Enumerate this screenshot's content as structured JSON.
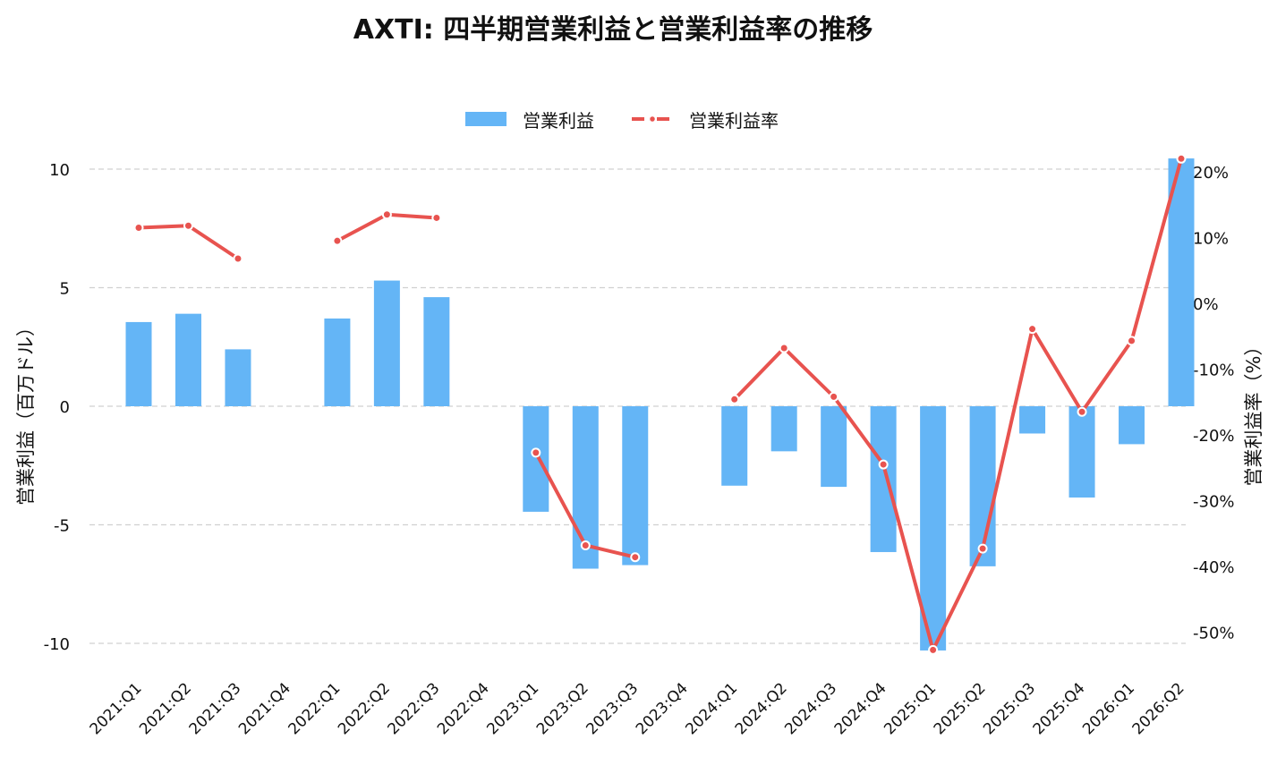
{
  "title": "AXTI: 四半期営業利益と営業利益率の推移",
  "legend": {
    "bar_label": "営業利益",
    "line_label": "営業利益率"
  },
  "colors": {
    "bar": "#64b5f6",
    "line": "#e8534f",
    "grid": "#d0d0d0"
  },
  "chart_data": {
    "type": "bar",
    "title": "AXTI: 四半期営業利益と営業利益率の推移",
    "categories": [
      "2021:Q1",
      "2021:Q2",
      "2021:Q3",
      "2021:Q4",
      "2022:Q1",
      "2022:Q2",
      "2022:Q3",
      "2022:Q4",
      "2023:Q1",
      "2023:Q2",
      "2023:Q3",
      "2023:Q4",
      "2024:Q1",
      "2024:Q2",
      "2024:Q3",
      "2024:Q4",
      "2025:Q1",
      "2025:Q2",
      "2025:Q3",
      "2025:Q4",
      "2026:Q1",
      "2026:Q2"
    ],
    "series": [
      {
        "name": "営業利益",
        "type": "bar",
        "axis": "left",
        "values": [
          3.55,
          3.9,
          2.4,
          null,
          3.7,
          5.3,
          4.6,
          null,
          -4.45,
          -6.85,
          -6.7,
          null,
          -3.35,
          -1.9,
          -3.4,
          -6.15,
          -10.3,
          -6.75,
          -1.15,
          -3.85,
          -1.6,
          10.45
        ]
      },
      {
        "name": "営業利益率",
        "type": "line",
        "axis": "right",
        "values": [
          11.5,
          11.8,
          6.8,
          null,
          9.5,
          13.5,
          13.0,
          null,
          -22.7,
          -36.8,
          -38.6,
          null,
          -14.6,
          -6.8,
          -14.2,
          -24.5,
          -52.7,
          -37.3,
          -3.9,
          -16.5,
          -5.7,
          22.0
        ]
      }
    ],
    "ylabel": "営業利益（百万ドル）",
    "y2label": "営業利益率（%）",
    "ylim": [
      -11.4,
      10.4
    ],
    "y2lim": [
      -55,
      22
    ],
    "yticks": [
      10,
      5,
      0,
      -5,
      -10
    ],
    "y2ticks": [
      20,
      10,
      0,
      -10,
      -20,
      -30,
      -40,
      -50
    ],
    "ytick_labels": [
      "10",
      "5",
      "0",
      "-5",
      "-10"
    ],
    "y2tick_labels": [
      "20%",
      "10%",
      "0%",
      "-10%",
      "-20%",
      "-30%",
      "-40%",
      "-50%"
    ],
    "grid": true,
    "legend_position": "top-center"
  }
}
